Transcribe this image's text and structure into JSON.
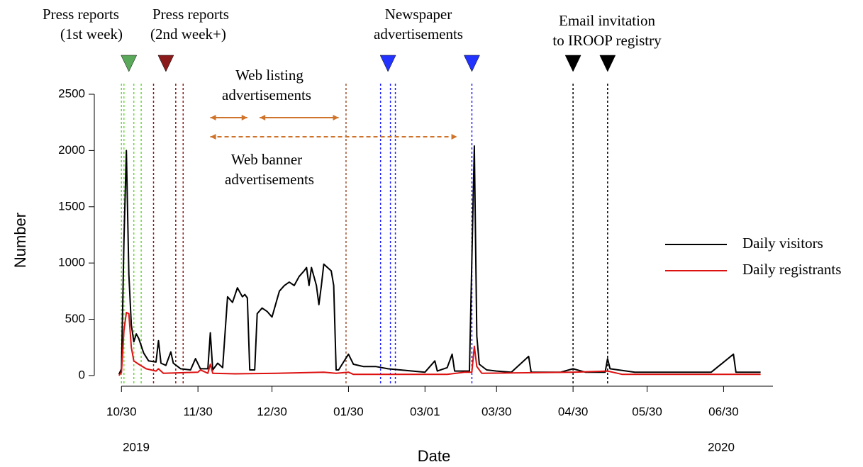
{
  "chart_data": {
    "type": "line",
    "x_label": "Date",
    "y_label": "Number",
    "year_labels": [
      "2019",
      "2020"
    ],
    "xlim": [
      "2019-10-19",
      "2020-07-20"
    ],
    "xticks": [
      {
        "value": "2019-10-30",
        "label": "10/30"
      },
      {
        "value": "2019-11-30",
        "label": "11/30"
      },
      {
        "value": "2019-12-30",
        "label": "12/30"
      },
      {
        "value": "2020-01-30",
        "label": "01/30"
      },
      {
        "value": "2020-03-01",
        "label": "03/01"
      },
      {
        "value": "2020-03-30",
        "label": "03/30"
      },
      {
        "value": "2020-04-30",
        "label": "04/30"
      },
      {
        "value": "2020-05-30",
        "label": "05/30"
      },
      {
        "value": "2020-06-30",
        "label": "06/30"
      }
    ],
    "ylim": [
      -95,
      2500
    ],
    "yticks": [
      0,
      500,
      1000,
      1500,
      2000,
      2500
    ],
    "legend": "right",
    "series": [
      {
        "name": "Daily visitors",
        "color": "#000000",
        "x": [
          "2019-10-29",
          "2019-10-30",
          "2019-10-31",
          "2019-11-01",
          "2019-11-02",
          "2019-11-03",
          "2019-11-04",
          "2019-11-05",
          "2019-11-06",
          "2019-11-08",
          "2019-11-10",
          "2019-11-13",
          "2019-11-14",
          "2019-11-15",
          "2019-11-17",
          "2019-11-19",
          "2019-11-20",
          "2019-11-23",
          "2019-11-27",
          "2019-11-29",
          "2019-12-01",
          "2019-12-04",
          "2019-12-05",
          "2019-12-06",
          "2019-12-08",
          "2019-12-10",
          "2019-12-12",
          "2019-12-14",
          "2019-12-16",
          "2019-12-18",
          "2019-12-19",
          "2019-12-20",
          "2019-12-21",
          "2019-12-23",
          "2019-12-24",
          "2019-12-26",
          "2019-12-28",
          "2019-12-30",
          "2020-01-02",
          "2020-01-04",
          "2020-01-06",
          "2020-01-08",
          "2020-01-10",
          "2020-01-12",
          "2020-01-13",
          "2020-01-14",
          "2020-01-15",
          "2020-01-17",
          "2020-01-18",
          "2020-01-19",
          "2020-01-20",
          "2020-01-23",
          "2020-01-24",
          "2020-01-25",
          "2020-01-26",
          "2020-01-30",
          "2020-02-01",
          "2020-02-05",
          "2020-02-10",
          "2020-02-15",
          "2020-02-20",
          "2020-02-25",
          "2020-03-01",
          "2020-03-05",
          "2020-03-06",
          "2020-03-10",
          "2020-03-12",
          "2020-03-13",
          "2020-03-19",
          "2020-03-21",
          "2020-03-22",
          "2020-03-23",
          "2020-03-26",
          "2020-03-30",
          "2020-04-05",
          "2020-04-12",
          "2020-04-13",
          "2020-04-25",
          "2020-04-30",
          "2020-05-05",
          "2020-05-13",
          "2020-05-14",
          "2020-05-15",
          "2020-05-25",
          "2020-06-10",
          "2020-06-25",
          "2020-07-04",
          "2020-07-05",
          "2020-07-15"
        ],
        "values": [
          10,
          60,
          1200,
          2000,
          900,
          450,
          300,
          370,
          330,
          200,
          130,
          120,
          310,
          110,
          90,
          210,
          110,
          60,
          50,
          150,
          60,
          60,
          380,
          50,
          110,
          70,
          700,
          650,
          780,
          700,
          720,
          690,
          50,
          50,
          550,
          600,
          570,
          520,
          750,
          800,
          830,
          800,
          880,
          930,
          960,
          800,
          960,
          800,
          630,
          800,
          990,
          930,
          800,
          50,
          50,
          190,
          100,
          80,
          80,
          60,
          50,
          40,
          30,
          130,
          40,
          70,
          190,
          40,
          40,
          2040,
          350,
          100,
          50,
          40,
          30,
          170,
          30,
          30,
          60,
          30,
          30,
          150,
          60,
          30,
          30,
          30,
          190,
          30,
          30
        ]
      },
      {
        "name": "Daily registrants",
        "color": "#dd1111",
        "x": [
          "2019-10-29",
          "2019-10-30",
          "2019-10-31",
          "2019-11-01",
          "2019-11-02",
          "2019-11-03",
          "2019-11-04",
          "2019-11-06",
          "2019-11-09",
          "2019-11-13",
          "2019-11-14",
          "2019-11-16",
          "2019-11-30",
          "2019-12-01",
          "2019-12-04",
          "2019-12-05",
          "2019-12-06",
          "2019-12-15",
          "2020-01-01",
          "2020-01-20",
          "2020-01-25",
          "2020-01-30",
          "2020-02-01",
          "2020-03-10",
          "2020-03-17",
          "2020-03-20",
          "2020-03-21",
          "2020-03-22",
          "2020-03-24",
          "2020-04-30",
          "2020-05-14",
          "2020-05-20",
          "2020-07-15"
        ],
        "values": [
          0,
          30,
          400,
          560,
          550,
          250,
          130,
          100,
          60,
          40,
          60,
          20,
          30,
          50,
          20,
          100,
          20,
          15,
          20,
          30,
          20,
          30,
          10,
          10,
          30,
          30,
          260,
          80,
          20,
          30,
          40,
          10,
          10
        ]
      }
    ],
    "event_lines": [
      {
        "x": "2019-10-30",
        "color": "#66dd33"
      },
      {
        "x": "2019-10-31",
        "color": "#66dd33"
      },
      {
        "x": "2019-11-04",
        "color": "#66dd33"
      },
      {
        "x": "2019-11-07",
        "color": "#66dd33"
      },
      {
        "x": "2019-11-12",
        "color": "#8b1a1a"
      },
      {
        "x": "2019-11-21",
        "color": "#8b1a1a"
      },
      {
        "x": "2019-11-24",
        "color": "#8b1a1a"
      },
      {
        "x": "2020-01-29",
        "color": "#a0522d"
      },
      {
        "x": "2020-02-12",
        "color": "#2020ff"
      },
      {
        "x": "2020-02-16",
        "color": "#2020ff"
      },
      {
        "x": "2020-02-18",
        "color": "#2020ff"
      },
      {
        "x": "2020-03-20",
        "color": "#2020ff"
      },
      {
        "x": "2020-04-30",
        "color": "#000000"
      },
      {
        "x": "2020-05-14",
        "color": "#000000"
      }
    ],
    "markers": [
      {
        "x": "2019-11-02",
        "color": "#5aa85a"
      },
      {
        "x": "2019-11-17",
        "color": "#8b1a1a"
      },
      {
        "x": "2020-02-15",
        "color": "#2233ff"
      },
      {
        "x": "2020-03-20",
        "color": "#2233ff"
      },
      {
        "x": "2020-04-30",
        "color": "#000000"
      },
      {
        "x": "2020-05-14",
        "color": "#000000"
      }
    ],
    "arrows": [
      {
        "from": "2019-12-05",
        "to": "2019-12-20",
        "style": "solid",
        "color": "#d0732a"
      },
      {
        "from": "2019-12-25",
        "to": "2020-01-26",
        "style": "solid",
        "color": "#d0732a"
      },
      {
        "from": "2019-12-05",
        "to": "2020-03-14",
        "style": "dashed",
        "color": "#d0732a"
      }
    ],
    "annotations": [
      [
        "Press reports",
        "(1st week)"
      ],
      [
        "Press reports",
        "(2nd week+)"
      ],
      [
        "Web listing",
        "advertisements"
      ],
      [
        "Web banner",
        "advertisements"
      ],
      [
        "Newspaper",
        "advertisements"
      ],
      [
        "Email invitation",
        "to IROOP registry"
      ]
    ]
  }
}
